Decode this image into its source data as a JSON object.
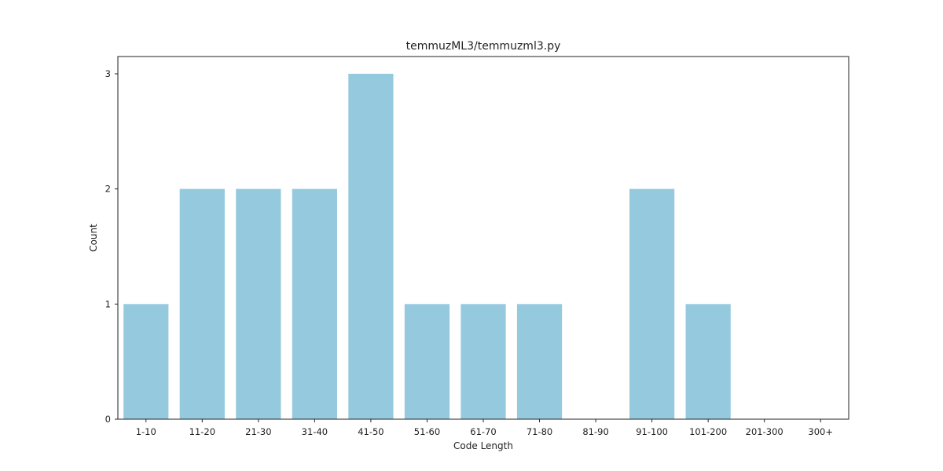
{
  "chart_data": {
    "type": "bar",
    "title": "temmuzML3/temmuzml3.py",
    "xlabel": "Code Length",
    "ylabel": "Count",
    "categories": [
      "1-10",
      "11-20",
      "21-30",
      "31-40",
      "41-50",
      "51-60",
      "61-70",
      "71-80",
      "81-90",
      "91-100",
      "101-200",
      "201-300",
      "300+"
    ],
    "values": [
      1,
      2,
      2,
      2,
      3,
      1,
      1,
      1,
      0,
      2,
      1,
      0,
      0
    ],
    "yticks": [
      0,
      1,
      2,
      3
    ],
    "ylim": [
      0,
      3.15
    ],
    "grid": false,
    "bar_color": "#95c9de"
  }
}
